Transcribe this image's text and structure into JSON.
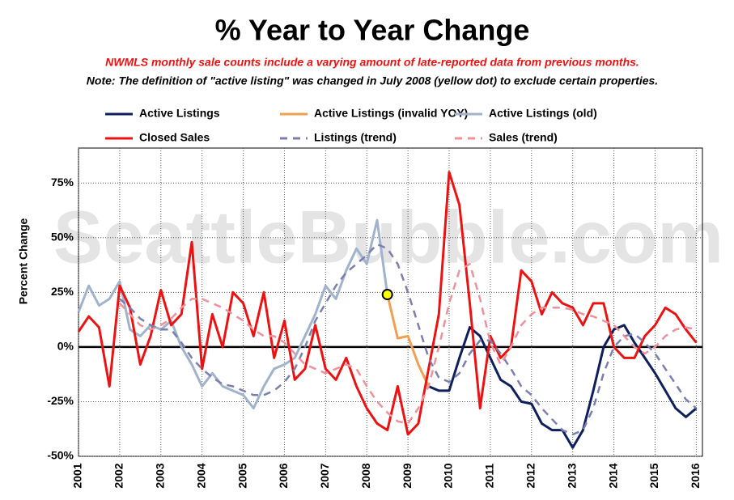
{
  "chart_data": {
    "type": "line",
    "title": "% Year to Year Change",
    "subtitle": "NWMLS monthly sale counts include a varying amount of late-reported  data from previous months.",
    "note": "Note: The definition of \"active listing\" was changed in July 2008 (yellow dot) to exclude certain properties.",
    "watermark": "SeattleBubble.com",
    "y_label": "Percent Change",
    "x": [
      2001,
      2001.25,
      2001.5,
      2001.75,
      2002,
      2002.25,
      2002.5,
      2002.75,
      2003,
      2003.25,
      2003.5,
      2003.75,
      2004,
      2004.25,
      2004.5,
      2004.75,
      2005,
      2005.25,
      2005.5,
      2005.75,
      2006,
      2006.25,
      2006.5,
      2006.75,
      2007,
      2007.25,
      2007.5,
      2007.75,
      2008,
      2008.25,
      2008.5,
      2008.75,
      2009,
      2009.25,
      2009.5,
      2009.75,
      2010,
      2010.25,
      2010.5,
      2010.75,
      2011,
      2011.25,
      2011.5,
      2011.75,
      2012,
      2012.25,
      2012.5,
      2012.75,
      2013,
      2013.25,
      2013.5,
      2013.75,
      2014,
      2014.25,
      2014.5,
      2014.75,
      2015,
      2015.25,
      2015.5,
      2015.75,
      2016
    ],
    "xlim": [
      2001,
      2016.15
    ],
    "xticks": [
      2001,
      2002,
      2003,
      2004,
      2005,
      2006,
      2007,
      2008,
      2009,
      2010,
      2011,
      2012,
      2013,
      2014,
      2015,
      2016
    ],
    "ylim": [
      -50,
      91
    ],
    "yticks": [
      {
        "value": -50,
        "label": "-50%"
      },
      {
        "value": -25,
        "label": "-25%"
      },
      {
        "value": 0,
        "label": "0%"
      },
      {
        "value": 25,
        "label": "25%"
      },
      {
        "value": 50,
        "label": "50%"
      },
      {
        "value": 75,
        "label": "75%"
      }
    ],
    "grid": true,
    "series": [
      {
        "name": "Active Listings",
        "color": "#0d1f5c",
        "dashed": false,
        "values": [
          null,
          null,
          null,
          null,
          null,
          null,
          null,
          null,
          null,
          null,
          null,
          null,
          null,
          null,
          null,
          null,
          null,
          null,
          null,
          null,
          null,
          null,
          null,
          null,
          null,
          null,
          null,
          null,
          null,
          null,
          null,
          null,
          null,
          null,
          -18,
          -20,
          -20,
          -5,
          9,
          5,
          -5,
          -15,
          -18,
          -25,
          -26,
          -35,
          -38,
          -38,
          -46,
          -38,
          -20,
          0,
          8,
          10,
          2,
          -5,
          -12,
          -20,
          -28,
          -32,
          -28
        ]
      },
      {
        "name": "Active Listings (invalid YOY)",
        "color": "#f0a050",
        "dashed": false,
        "values": [
          null,
          null,
          null,
          null,
          null,
          null,
          null,
          null,
          null,
          null,
          null,
          null,
          null,
          null,
          null,
          null,
          null,
          null,
          null,
          null,
          null,
          null,
          null,
          null,
          null,
          null,
          null,
          null,
          null,
          null,
          24,
          4,
          5,
          -8,
          -18,
          null,
          null,
          null,
          null,
          null,
          null,
          null,
          null,
          null,
          null,
          null,
          null,
          null,
          null,
          null,
          null,
          null,
          null,
          null,
          null,
          null,
          null,
          null,
          null,
          null,
          null
        ]
      },
      {
        "name": "Active Listings (old)",
        "color": "#9fb4cc",
        "dashed": false,
        "values": [
          16,
          28,
          19,
          22,
          30,
          8,
          5,
          10,
          8,
          12,
          0,
          -8,
          -18,
          -12,
          -18,
          -20,
          -22,
          -28,
          -18,
          -10,
          -8,
          -5,
          5,
          15,
          28,
          22,
          35,
          45,
          38,
          58,
          24,
          null,
          null,
          null,
          null,
          null,
          null,
          null,
          null,
          null,
          null,
          null,
          null,
          null,
          null,
          null,
          null,
          null,
          null,
          null,
          null,
          null,
          null,
          null,
          null,
          null,
          null,
          null,
          null,
          null,
          null
        ]
      },
      {
        "name": "Closed Sales",
        "color": "#ee1111",
        "dashed": false,
        "values": [
          7,
          14,
          9,
          -18,
          28,
          18,
          -8,
          5,
          26,
          10,
          15,
          48,
          -10,
          15,
          0,
          25,
          20,
          5,
          25,
          -5,
          12,
          -15,
          -10,
          10,
          -10,
          -15,
          -5,
          -18,
          -28,
          -35,
          -38,
          -18,
          -40,
          -35,
          -10,
          15,
          80,
          65,
          20,
          -28,
          5,
          -5,
          0,
          35,
          30,
          15,
          25,
          20,
          18,
          10,
          20,
          20,
          0,
          -5,
          -5,
          5,
          10,
          18,
          15,
          8,
          2
        ]
      },
      {
        "name": "Listings (trend)",
        "color": "#7a7fb0",
        "dashed": true,
        "values": [
          null,
          null,
          null,
          null,
          22,
          18,
          13,
          10,
          8,
          8,
          2,
          -5,
          -10,
          -14,
          -17,
          -18,
          -20,
          -22,
          -22,
          -20,
          -16,
          -10,
          0,
          12,
          20,
          28,
          34,
          38,
          42,
          47,
          45,
          38,
          25,
          10,
          -5,
          -14,
          -16,
          -12,
          -3,
          3,
          3,
          -3,
          -10,
          -18,
          -22,
          -28,
          -33,
          -38,
          -40,
          -38,
          -28,
          -12,
          0,
          5,
          6,
          2,
          -3,
          -10,
          -17,
          -24,
          -28
        ]
      },
      {
        "name": "Sales (trend)",
        "color": "#f0909a",
        "dashed": true,
        "values": [
          null,
          null,
          null,
          null,
          20,
          15,
          10,
          8,
          10,
          13,
          18,
          22,
          22,
          20,
          18,
          15,
          12,
          8,
          5,
          5,
          2,
          -3,
          -8,
          -10,
          -12,
          -10,
          -8,
          -10,
          -18,
          -25,
          -30,
          -34,
          -35,
          -28,
          -18,
          0,
          20,
          35,
          38,
          22,
          2,
          -8,
          0,
          10,
          15,
          18,
          18,
          18,
          17,
          15,
          14,
          12,
          10,
          5,
          0,
          -3,
          0,
          5,
          8,
          9,
          8
        ]
      }
    ],
    "highlight": {
      "x": 2008.5,
      "y": 24,
      "color": "#ffff00"
    }
  }
}
